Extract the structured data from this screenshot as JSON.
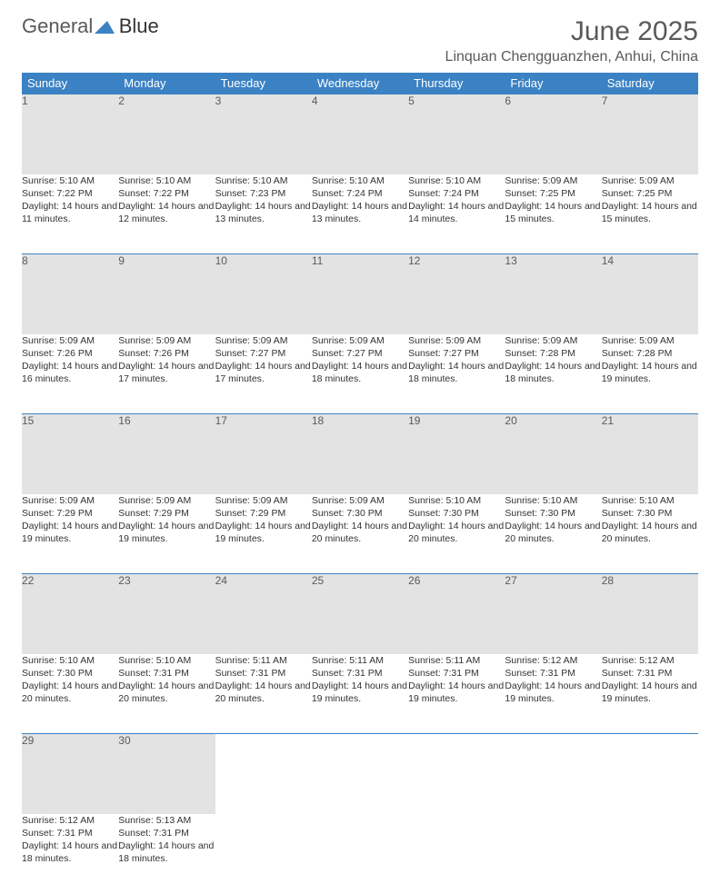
{
  "logo": {
    "line1": "General",
    "line2": "Blue"
  },
  "title": "June 2025",
  "location": "Linquan Chengguanzhen, Anhui, China",
  "colors": {
    "header_bg": "#3b82c4",
    "header_text": "#ffffff",
    "daynum_bg": "#e3e3e3",
    "text": "#333333",
    "title_text": "#5a5a5a",
    "row_border": "#3b82c4"
  },
  "weekdays": [
    "Sunday",
    "Monday",
    "Tuesday",
    "Wednesday",
    "Thursday",
    "Friday",
    "Saturday"
  ],
  "weeks": [
    [
      {
        "day": "1",
        "sunrise": "5:10 AM",
        "sunset": "7:22 PM",
        "daylight": "14 hours and 11 minutes."
      },
      {
        "day": "2",
        "sunrise": "5:10 AM",
        "sunset": "7:22 PM",
        "daylight": "14 hours and 12 minutes."
      },
      {
        "day": "3",
        "sunrise": "5:10 AM",
        "sunset": "7:23 PM",
        "daylight": "14 hours and 13 minutes."
      },
      {
        "day": "4",
        "sunrise": "5:10 AM",
        "sunset": "7:24 PM",
        "daylight": "14 hours and 13 minutes."
      },
      {
        "day": "5",
        "sunrise": "5:10 AM",
        "sunset": "7:24 PM",
        "daylight": "14 hours and 14 minutes."
      },
      {
        "day": "6",
        "sunrise": "5:09 AM",
        "sunset": "7:25 PM",
        "daylight": "14 hours and 15 minutes."
      },
      {
        "day": "7",
        "sunrise": "5:09 AM",
        "sunset": "7:25 PM",
        "daylight": "14 hours and 15 minutes."
      }
    ],
    [
      {
        "day": "8",
        "sunrise": "5:09 AM",
        "sunset": "7:26 PM",
        "daylight": "14 hours and 16 minutes."
      },
      {
        "day": "9",
        "sunrise": "5:09 AM",
        "sunset": "7:26 PM",
        "daylight": "14 hours and 17 minutes."
      },
      {
        "day": "10",
        "sunrise": "5:09 AM",
        "sunset": "7:27 PM",
        "daylight": "14 hours and 17 minutes."
      },
      {
        "day": "11",
        "sunrise": "5:09 AM",
        "sunset": "7:27 PM",
        "daylight": "14 hours and 18 minutes."
      },
      {
        "day": "12",
        "sunrise": "5:09 AM",
        "sunset": "7:27 PM",
        "daylight": "14 hours and 18 minutes."
      },
      {
        "day": "13",
        "sunrise": "5:09 AM",
        "sunset": "7:28 PM",
        "daylight": "14 hours and 18 minutes."
      },
      {
        "day": "14",
        "sunrise": "5:09 AM",
        "sunset": "7:28 PM",
        "daylight": "14 hours and 19 minutes."
      }
    ],
    [
      {
        "day": "15",
        "sunrise": "5:09 AM",
        "sunset": "7:29 PM",
        "daylight": "14 hours and 19 minutes."
      },
      {
        "day": "16",
        "sunrise": "5:09 AM",
        "sunset": "7:29 PM",
        "daylight": "14 hours and 19 minutes."
      },
      {
        "day": "17",
        "sunrise": "5:09 AM",
        "sunset": "7:29 PM",
        "daylight": "14 hours and 19 minutes."
      },
      {
        "day": "18",
        "sunrise": "5:09 AM",
        "sunset": "7:30 PM",
        "daylight": "14 hours and 20 minutes."
      },
      {
        "day": "19",
        "sunrise": "5:10 AM",
        "sunset": "7:30 PM",
        "daylight": "14 hours and 20 minutes."
      },
      {
        "day": "20",
        "sunrise": "5:10 AM",
        "sunset": "7:30 PM",
        "daylight": "14 hours and 20 minutes."
      },
      {
        "day": "21",
        "sunrise": "5:10 AM",
        "sunset": "7:30 PM",
        "daylight": "14 hours and 20 minutes."
      }
    ],
    [
      {
        "day": "22",
        "sunrise": "5:10 AM",
        "sunset": "7:30 PM",
        "daylight": "14 hours and 20 minutes."
      },
      {
        "day": "23",
        "sunrise": "5:10 AM",
        "sunset": "7:31 PM",
        "daylight": "14 hours and 20 minutes."
      },
      {
        "day": "24",
        "sunrise": "5:11 AM",
        "sunset": "7:31 PM",
        "daylight": "14 hours and 20 minutes."
      },
      {
        "day": "25",
        "sunrise": "5:11 AM",
        "sunset": "7:31 PM",
        "daylight": "14 hours and 19 minutes."
      },
      {
        "day": "26",
        "sunrise": "5:11 AM",
        "sunset": "7:31 PM",
        "daylight": "14 hours and 19 minutes."
      },
      {
        "day": "27",
        "sunrise": "5:12 AM",
        "sunset": "7:31 PM",
        "daylight": "14 hours and 19 minutes."
      },
      {
        "day": "28",
        "sunrise": "5:12 AM",
        "sunset": "7:31 PM",
        "daylight": "14 hours and 19 minutes."
      }
    ],
    [
      {
        "day": "29",
        "sunrise": "5:12 AM",
        "sunset": "7:31 PM",
        "daylight": "14 hours and 18 minutes."
      },
      {
        "day": "30",
        "sunrise": "5:13 AM",
        "sunset": "7:31 PM",
        "daylight": "14 hours and 18 minutes."
      },
      null,
      null,
      null,
      null,
      null
    ]
  ],
  "labels": {
    "sunrise": "Sunrise:",
    "sunset": "Sunset:",
    "daylight": "Daylight:"
  }
}
